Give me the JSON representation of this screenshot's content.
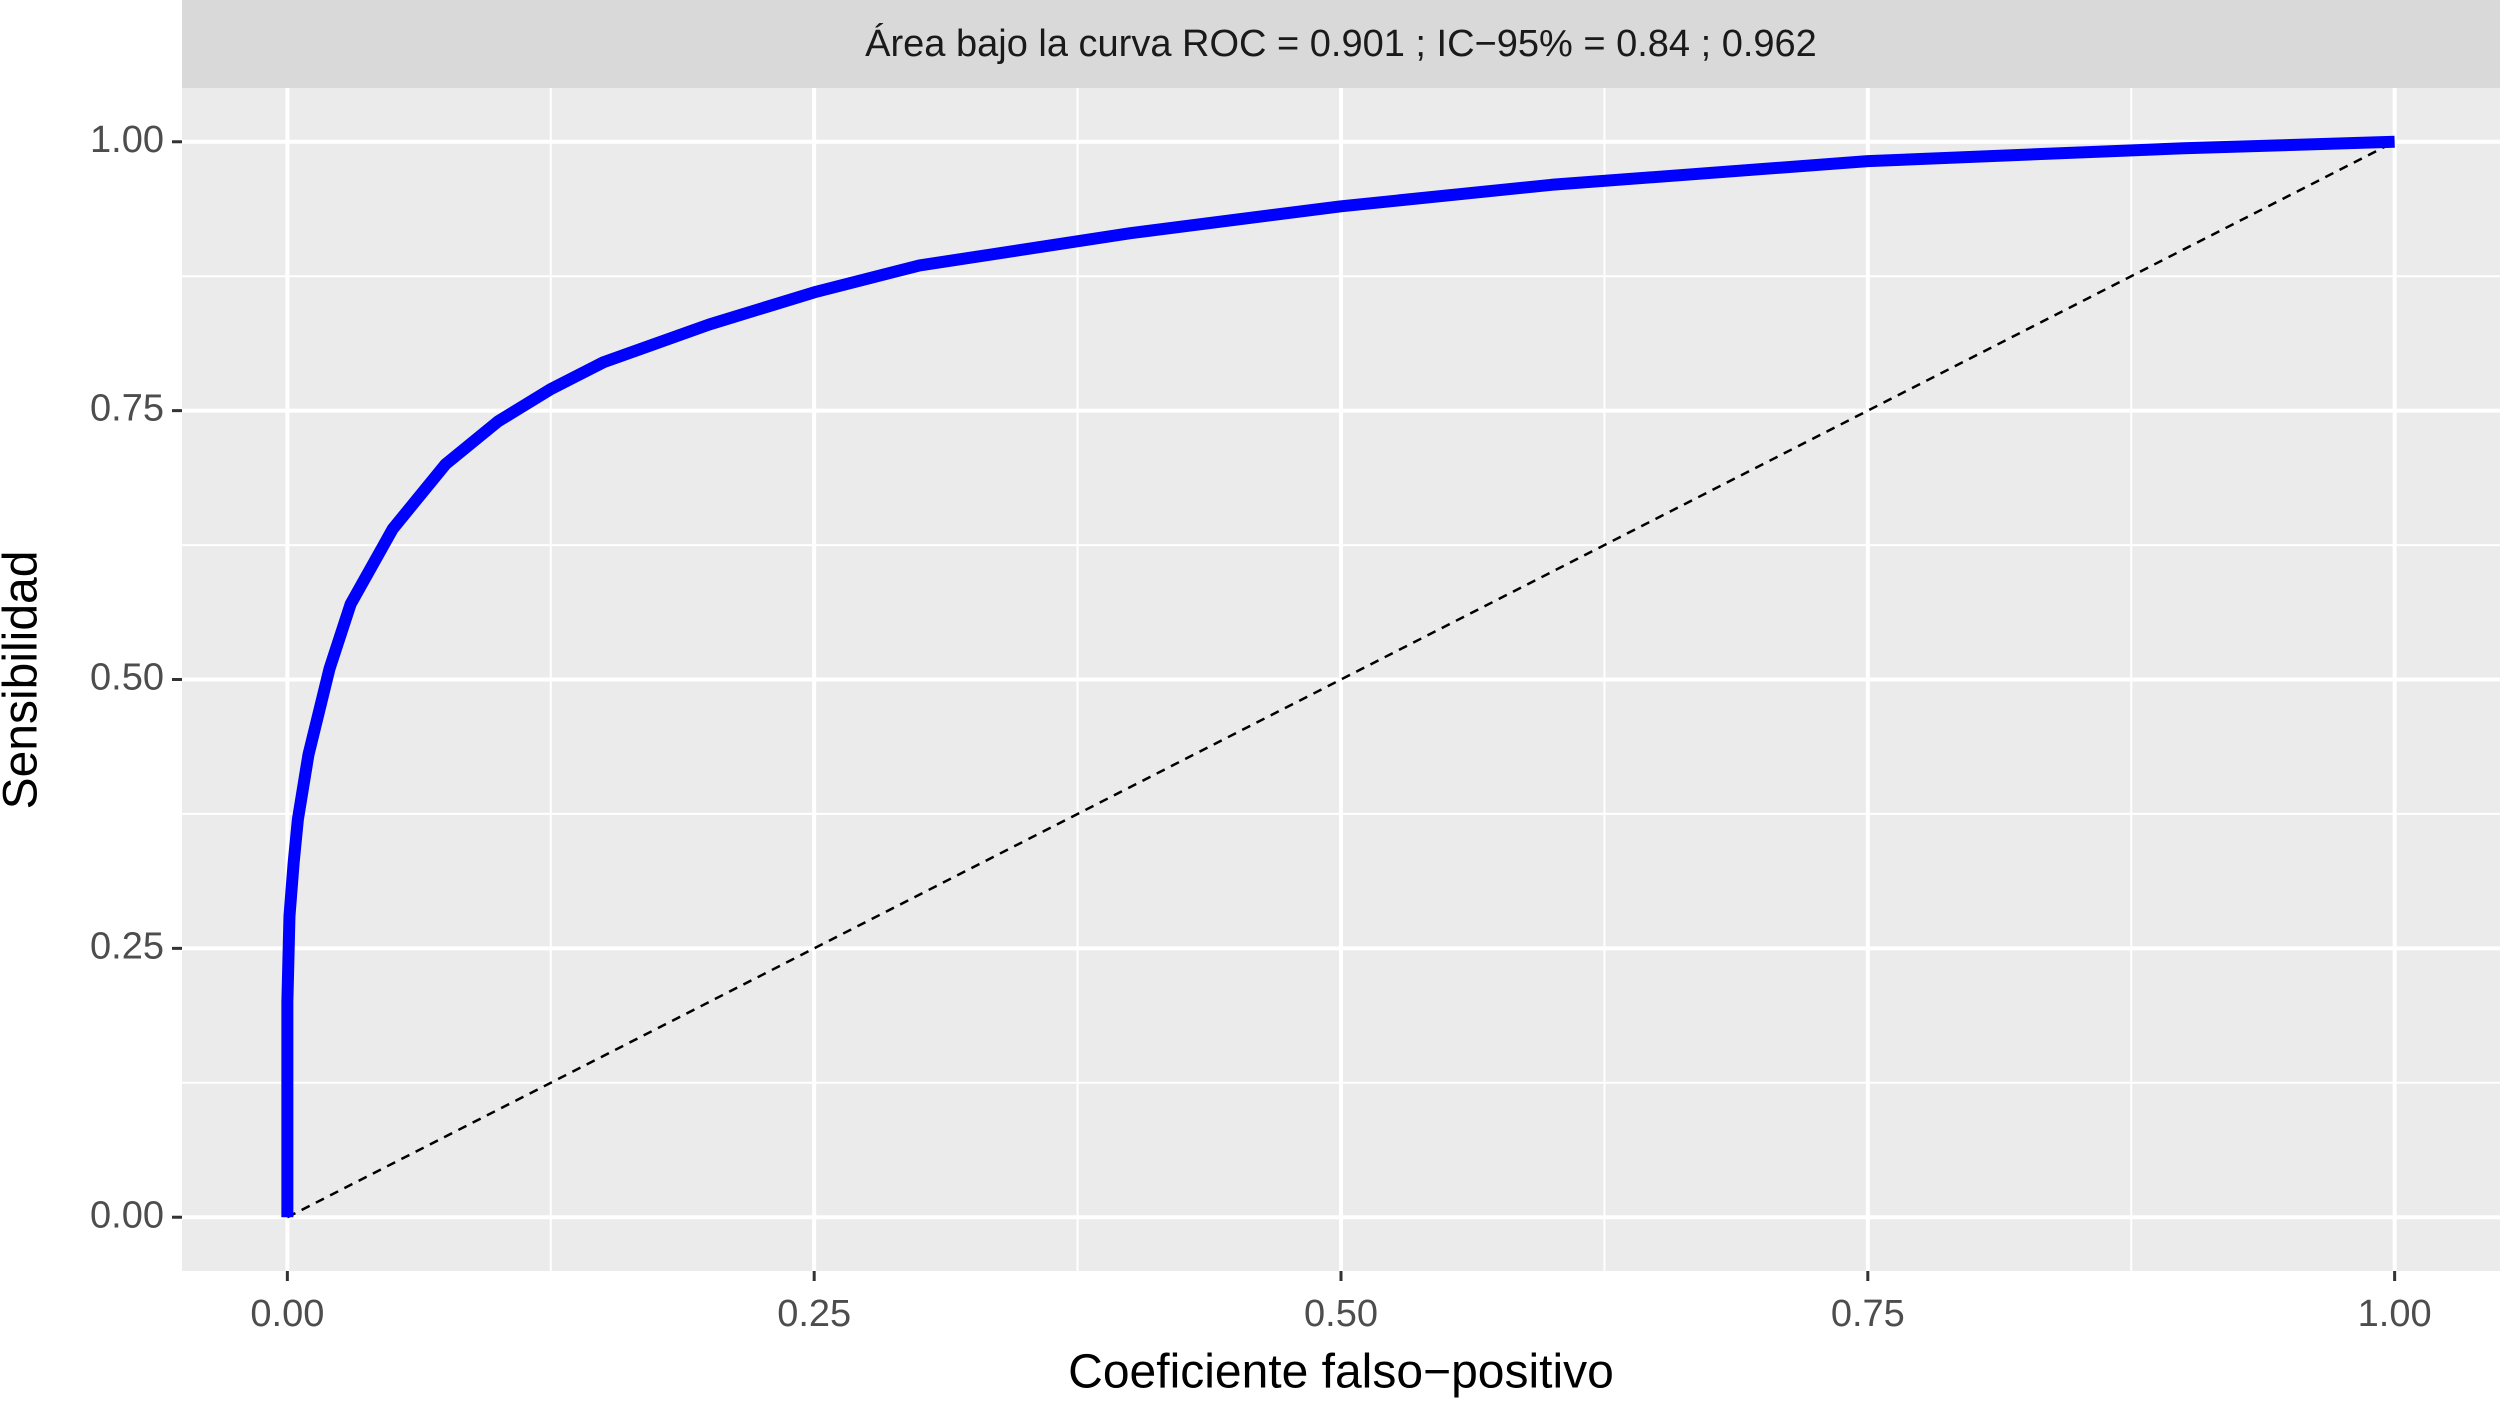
{
  "chart_data": {
    "type": "line",
    "title": "Área bajo la curva ROC =  0.901 ; IC−95% =  0.84  ;  0.962",
    "x_label": "Coeficiente falso−positivo",
    "y_label": "Sensibilidad",
    "series": [
      {
        "color": "#0000ff",
        "linestyle": "solid",
        "x": [
          0,
          0,
          0.001,
          0.003,
          0.005,
          0.01,
          0.02,
          0.03,
          0.05,
          0.075,
          0.1,
          0.125,
          0.15,
          0.2,
          0.25,
          0.3,
          0.4,
          0.5,
          0.6,
          0.75,
          0.9,
          1.0
        ],
        "values": [
          0,
          0.2,
          0.28,
          0.33,
          0.37,
          0.43,
          0.51,
          0.57,
          0.64,
          0.7,
          0.74,
          0.77,
          0.795,
          0.83,
          0.86,
          0.885,
          0.915,
          0.94,
          0.96,
          0.982,
          0.994,
          1.0
        ]
      },
      {
        "color": "#000000",
        "linestyle": "dashed",
        "x": [
          0,
          1
        ],
        "values": [
          0,
          1
        ]
      }
    ],
    "xlim": [
      -0.05,
      1.05
    ],
    "ylim": [
      -0.05,
      1.05
    ],
    "xticks": [
      {
        "value": 0,
        "label": "0.00"
      },
      {
        "value": 0.25,
        "label": "0.25"
      },
      {
        "value": 0.5,
        "label": "0.50"
      },
      {
        "value": 0.75,
        "label": "0.75"
      },
      {
        "value": 1,
        "label": "1.00"
      }
    ],
    "yticks": [
      {
        "value": 0,
        "label": "0.00"
      },
      {
        "value": 0.25,
        "label": "0.25"
      },
      {
        "value": 0.5,
        "label": "0.50"
      },
      {
        "value": 0.75,
        "label": "0.75"
      },
      {
        "value": 1,
        "label": "1.00"
      }
    ],
    "grid": true,
    "minor_grid": true
  }
}
